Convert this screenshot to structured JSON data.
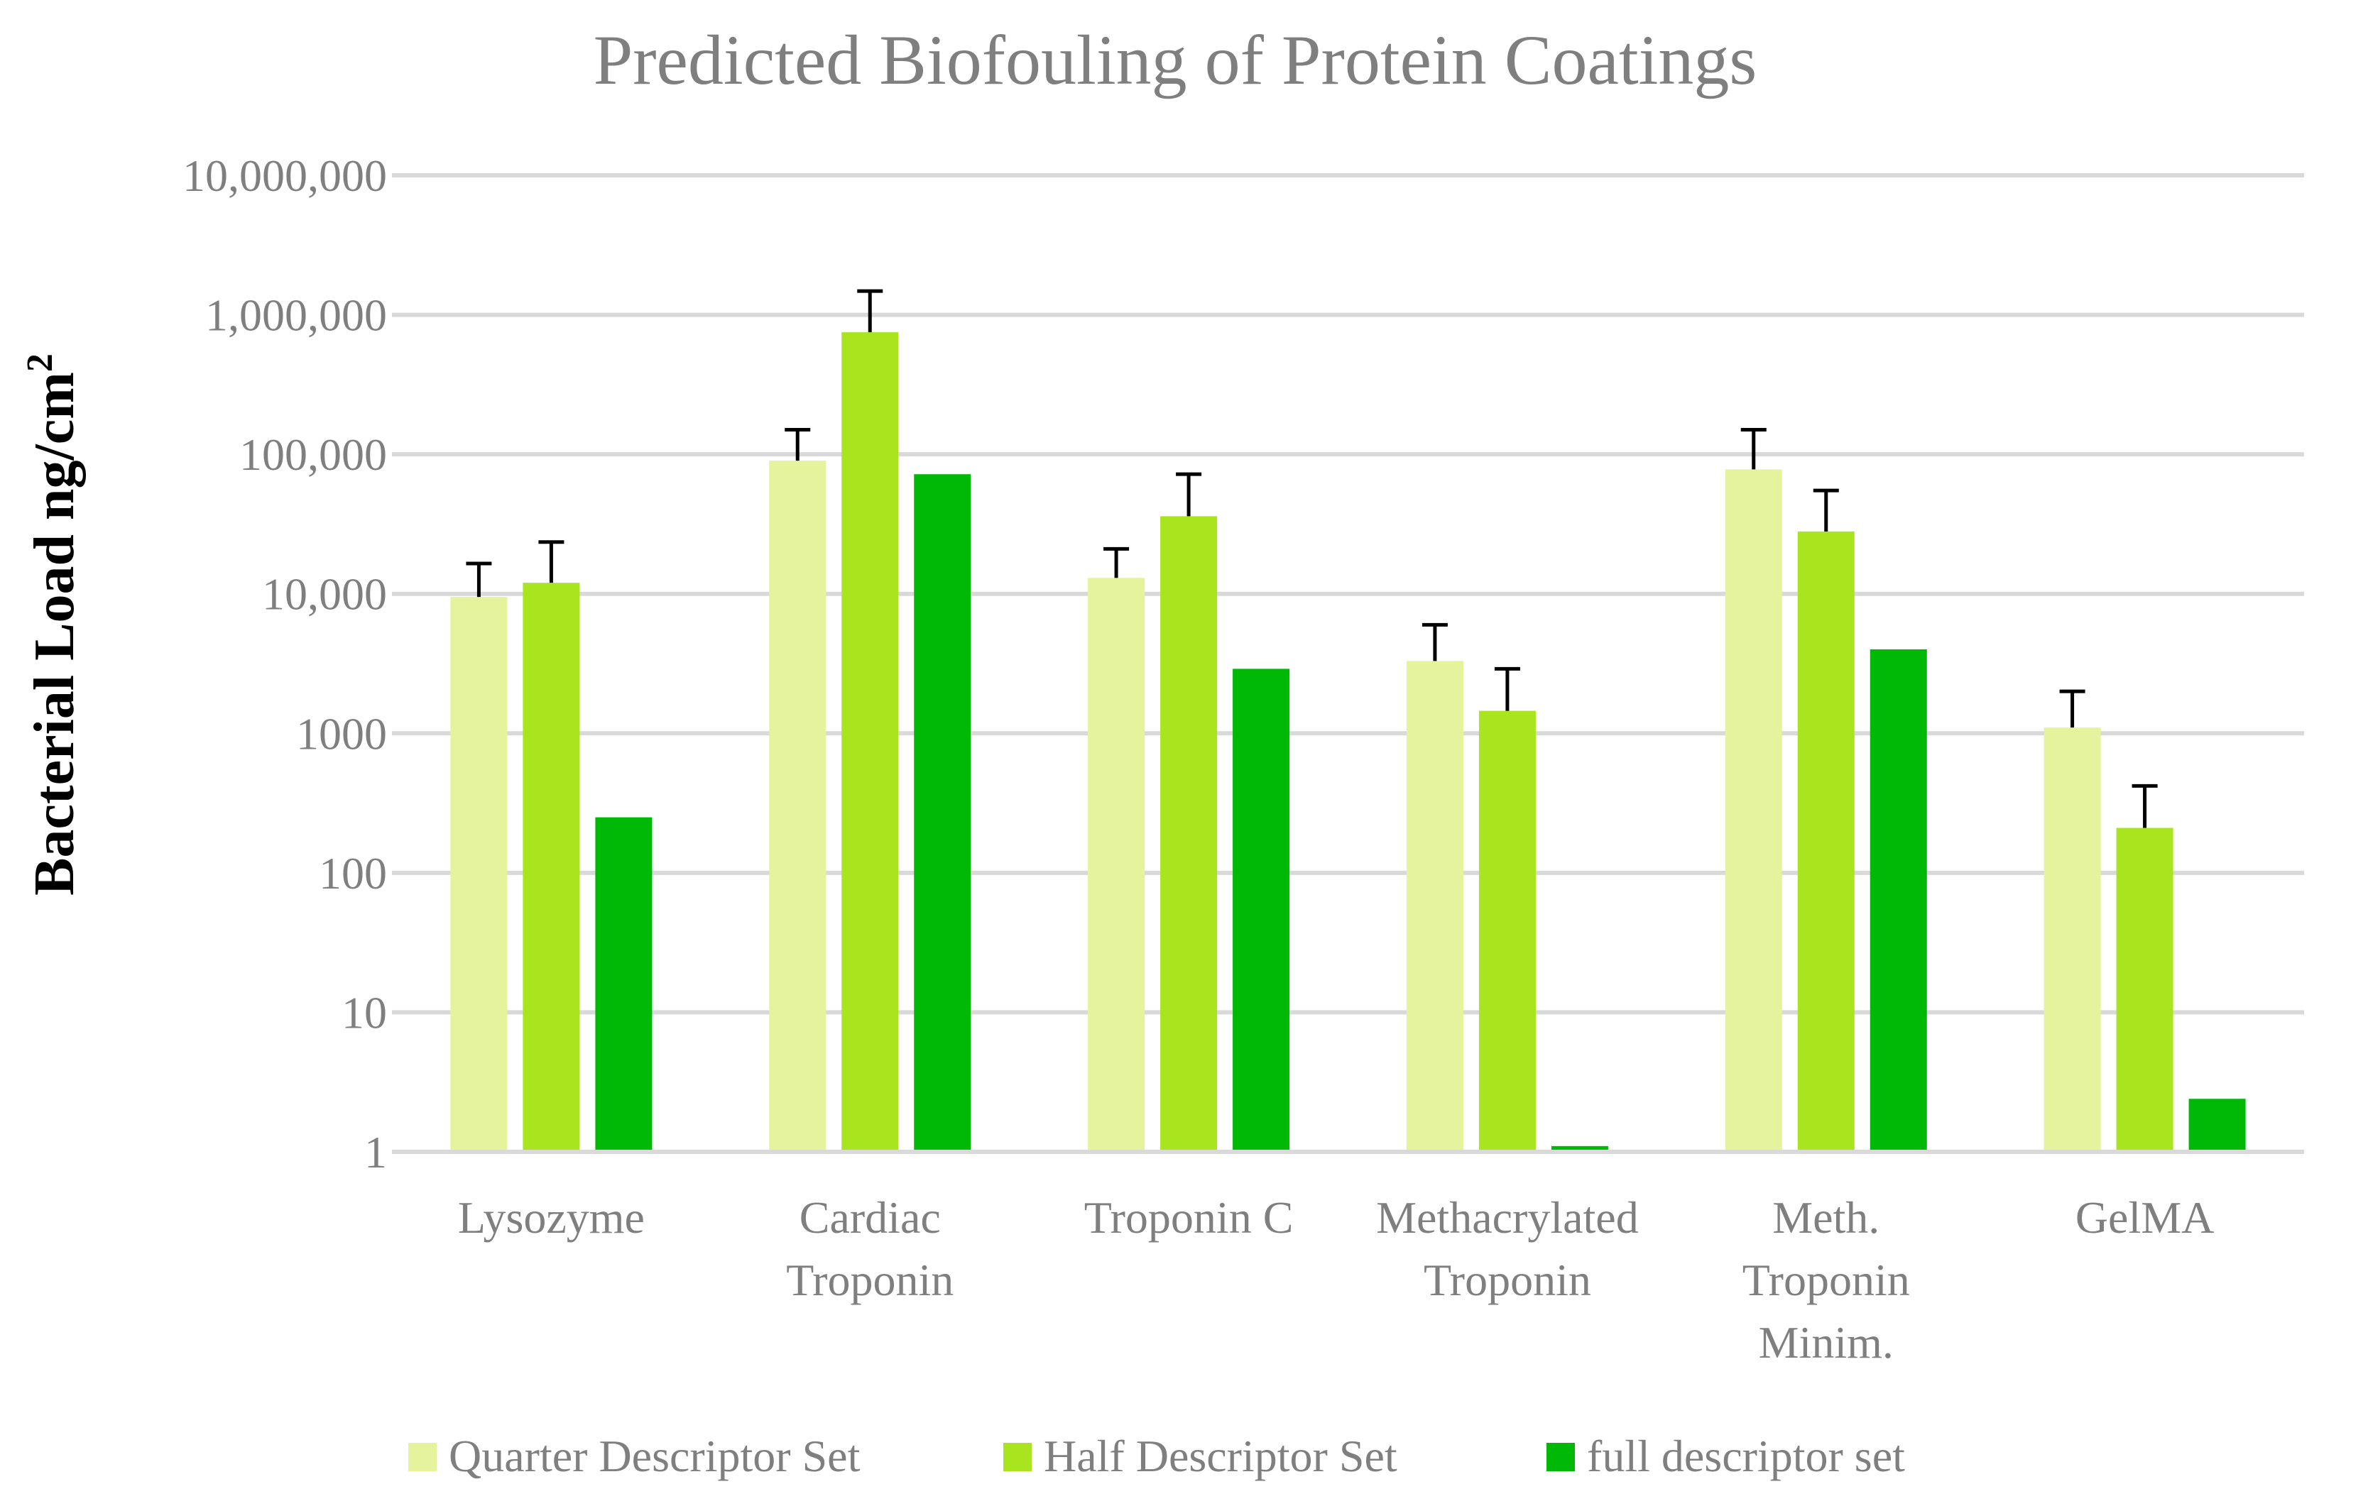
{
  "chart_data": {
    "type": "bar",
    "title": "Predicted Biofouling of Protein Coatings",
    "ylabel": "Bacterial Load ng/cm",
    "ylabel_superscript": "2",
    "xlabel": "",
    "yscale": "log",
    "ylim": [
      1,
      10000000
    ],
    "yticks": [
      {
        "value": 1,
        "label": "1"
      },
      {
        "value": 10,
        "label": "10"
      },
      {
        "value": 100,
        "label": "100"
      },
      {
        "value": 1000,
        "label": "1000"
      },
      {
        "value": 10000,
        "label": "10,000"
      },
      {
        "value": 100000,
        "label": "100,000"
      },
      {
        "value": 1000000,
        "label": "1,000,000"
      },
      {
        "value": 10000000,
        "label": "10,000,000"
      }
    ],
    "grid": true,
    "legend_position": "bottom",
    "categories": [
      [
        "Lysozyme"
      ],
      [
        "Cardiac",
        "Troponin"
      ],
      [
        "Troponin C"
      ],
      [
        "Methacrylated",
        "Troponin"
      ],
      [
        "Meth.",
        "Troponin",
        "Minim."
      ],
      [
        "GelMA"
      ]
    ],
    "series": [
      {
        "name": "Quarter Descriptor Set",
        "color": "#e4f39c",
        "values": [
          9500,
          90000,
          13000,
          3300,
          78000,
          1100
        ],
        "error_upper": [
          16500,
          150000,
          21000,
          6000,
          150000,
          2000
        ]
      },
      {
        "name": "Half Descriptor Set",
        "color": "#a8e51e",
        "values": [
          12000,
          750000,
          36000,
          1450,
          28000,
          210
        ],
        "error_upper": [
          23500,
          1480000,
          72000,
          2900,
          55000,
          420
        ]
      },
      {
        "name": "full descriptor set",
        "color": "#00b907",
        "values": [
          250,
          72000,
          2900,
          1.1,
          4000,
          2.4
        ],
        "error_upper": [
          null,
          null,
          null,
          null,
          null,
          null
        ]
      }
    ]
  }
}
